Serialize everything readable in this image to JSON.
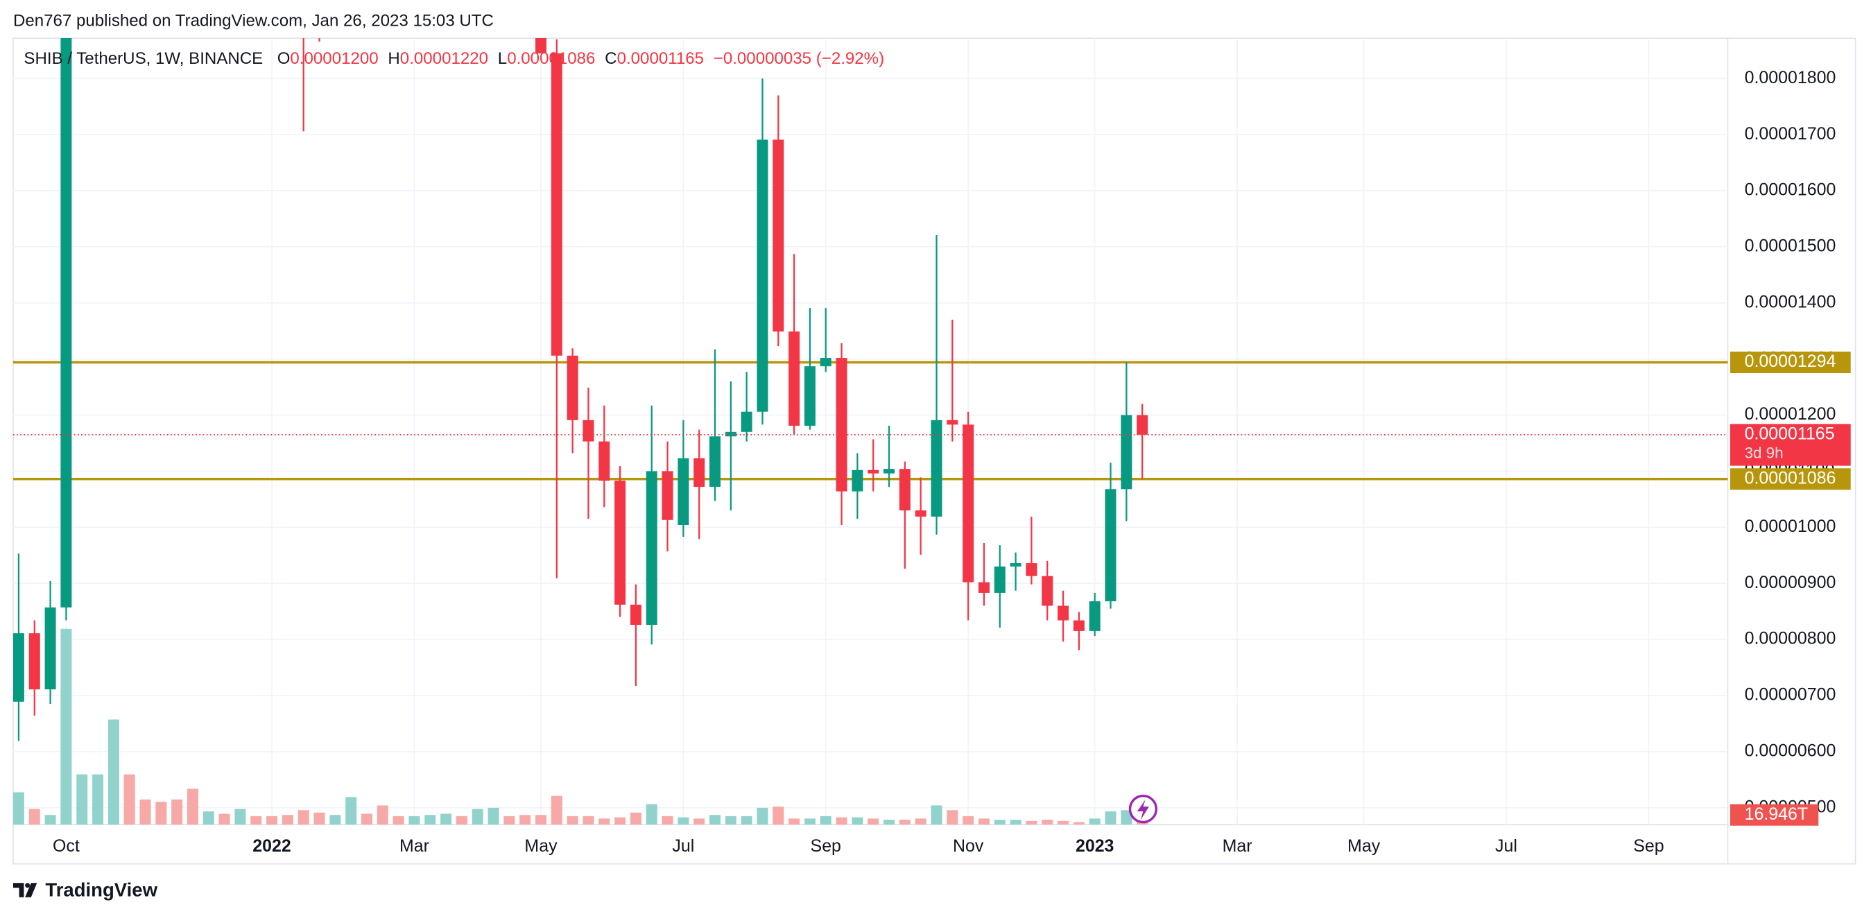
{
  "header": {
    "publisher": "Den767 published on TradingView.com, Jan 26, 2023 15:03 UTC",
    "footer": "TradingView"
  },
  "chart_data": {
    "type": "candlestick",
    "title": "SHIB / TetherUS, 1W, BINANCE",
    "legend_keys": [
      "O",
      "H",
      "L",
      "C"
    ],
    "legend_values": [
      "0.00001200",
      "0.00001220",
      "0.00001086",
      "0.00001165"
    ],
    "change": "−0.00000035 (−2.92%)",
    "up_color": "#089981",
    "down_color": "#f23645",
    "volume_up_color": "#92d2cc",
    "volume_down_color": "#f7a9a7",
    "open": [
      6.89e-06,
      8.11e-06,
      7.11e-06,
      8.57e-06,
      null,
      null,
      null,
      null,
      null,
      null,
      null,
      null,
      null,
      null,
      null,
      null,
      null,
      null,
      null,
      null,
      null,
      null,
      null,
      null,
      null,
      null,
      null,
      null,
      null,
      null,
      null,
      null,
      null,
      null,
      1.845e-05,
      1.306e-05,
      1.191e-05,
      1.153e-05,
      1.083e-05,
      8.62e-06,
      8.26e-06,
      1.1e-05,
      1.004e-05,
      1.123e-05,
      1.072e-05,
      1.162e-05,
      1.17e-05,
      1.206e-05,
      1.691e-05,
      1.349e-05,
      1.181e-05,
      1.287e-05,
      1.302e-05,
      1.064e-05,
      1.102e-05,
      1.096e-05,
      1.104e-05,
      1.03e-05,
      1.019e-05,
      1.191e-05,
      1.183e-05,
      9.02e-06,
      8.83e-06,
      9.3e-06,
      9.36e-06,
      9.13e-06,
      8.6e-06,
      8.34e-06,
      8.15e-06,
      8.68e-06,
      1.068e-05,
      1.2e-05
    ],
    "high": [
      9.53e-06,
      8.34e-06,
      9.04e-06,
      null,
      null,
      null,
      null,
      null,
      null,
      null,
      null,
      null,
      null,
      null,
      null,
      null,
      null,
      null,
      null,
      null,
      null,
      null,
      null,
      null,
      null,
      null,
      null,
      null,
      null,
      null,
      null,
      null,
      null,
      null,
      1.87e-05,
      1.319e-05,
      1.249e-05,
      1.217e-05,
      1.109e-05,
      8.98e-06,
      1.217e-05,
      1.153e-05,
      1.191e-05,
      1.174e-05,
      1.317e-05,
      1.26e-05,
      1.277e-05,
      1.8e-05,
      1.77e-05,
      1.487e-05,
      1.391e-05,
      1.391e-05,
      1.328e-05,
      1.132e-05,
      1.157e-05,
      1.181e-05,
      1.117e-05,
      1.089e-05,
      1.521e-05,
      1.37e-05,
      1.206e-05,
      9.72e-06,
      9.68e-06,
      9.55e-06,
      1.019e-05,
      9.4e-06,
      8.87e-06,
      8.49e-06,
      8.83e-06,
      1.115e-05,
      1.294e-05,
      1.22e-05
    ],
    "low": [
      6.19e-06,
      6.64e-06,
      6.85e-06,
      8.34e-06,
      null,
      null,
      null,
      null,
      null,
      null,
      null,
      null,
      null,
      null,
      null,
      null,
      null,
      null,
      1.706e-05,
      1.866e-05,
      null,
      null,
      null,
      null,
      null,
      null,
      null,
      null,
      null,
      null,
      null,
      null,
      null,
      null,
      9.09e-06,
      1.132e-05,
      1.015e-05,
      1.036e-05,
      8.4e-06,
      7.17e-06,
      7.91e-06,
      9.57e-06,
      9.83e-06,
      9.79e-06,
      1.047e-05,
      1.03e-05,
      1.153e-05,
      1.183e-05,
      1.323e-05,
      1.166e-05,
      1.174e-05,
      1.277e-05,
      1.004e-05,
      1.015e-05,
      1.064e-05,
      1.072e-05,
      9.26e-06,
      9.51e-06,
      9.87e-06,
      1.153e-05,
      8.34e-06,
      8.6e-06,
      8.21e-06,
      8.87e-06,
      8.98e-06,
      8.34e-06,
      7.96e-06,
      7.81e-06,
      8.06e-06,
      8.55e-06,
      1.011e-05,
      1.086e-05
    ],
    "close": [
      8.11e-06,
      7.11e-06,
      8.57e-06,
      null,
      null,
      null,
      null,
      null,
      null,
      null,
      null,
      null,
      null,
      null,
      null,
      null,
      null,
      null,
      null,
      null,
      null,
      null,
      null,
      null,
      null,
      null,
      null,
      null,
      null,
      null,
      null,
      null,
      null,
      1.845e-05,
      1.306e-05,
      1.191e-05,
      1.153e-05,
      1.083e-05,
      8.62e-06,
      8.26e-06,
      1.1e-05,
      1.013e-05,
      1.123e-05,
      1.072e-05,
      1.162e-05,
      1.17e-05,
      1.206e-05,
      1.691e-05,
      1.349e-05,
      1.181e-05,
      1.287e-05,
      1.302e-05,
      1.064e-05,
      1.102e-05,
      1.096e-05,
      1.104e-05,
      1.03e-05,
      1.019e-05,
      1.191e-05,
      1.183e-05,
      9.02e-06,
      8.83e-06,
      9.3e-06,
      9.36e-06,
      9.13e-06,
      8.6e-06,
      8.34e-06,
      8.15e-06,
      8.68e-06,
      1.068e-05,
      1.2e-05,
      1.165e-05
    ],
    "volume": [
      40.5,
      19.5,
      12,
      246,
      63,
      63,
      132,
      63,
      31.5,
      28.5,
      31.5,
      45,
      16.5,
      13.5,
      19.5,
      10.5,
      10.5,
      12,
      18,
      15,
      12,
      34.5,
      13.5,
      24,
      10.5,
      10.5,
      12,
      13.5,
      10.5,
      19.5,
      21,
      10.5,
      12,
      12,
      36,
      10.5,
      10.5,
      7.5,
      9,
      15,
      25.5,
      10.5,
      9,
      7.5,
      12,
      10.5,
      10.5,
      21,
      22.5,
      7.5,
      7.5,
      10.5,
      9,
      9,
      7.5,
      6,
      6,
      7.5,
      24,
      18,
      10.5,
      7.5,
      6,
      6,
      4.5,
      6,
      4.5,
      3,
      7.5,
      16.5,
      18,
      16.946
    ],
    "volume_colors": [
      "#92d2cc",
      "#f7a9a7",
      "#92d2cc",
      "#92d2cc",
      "#92d2cc",
      "#92d2cc",
      "#92d2cc",
      "#f7a9a7",
      "#f7a9a7",
      "#f7a9a7",
      "#f7a9a7",
      "#f7a9a7",
      "#92d2cc",
      "#f7a9a7",
      "#92d2cc",
      "#f7a9a7",
      "#f7a9a7",
      "#f7a9a7",
      "#f7a9a7",
      "#f7a9a7",
      "#92d2cc",
      "#92d2cc",
      "#f7a9a7",
      "#f7a9a7",
      "#f7a9a7",
      "#92d2cc",
      "#92d2cc",
      "#92d2cc",
      "#f7a9a7",
      "#92d2cc",
      "#92d2cc",
      "#f7a9a7",
      "#f7a9a7",
      "#f7a9a7",
      "#f7a9a7",
      "#f7a9a7",
      "#f7a9a7",
      "#f7a9a7",
      "#f7a9a7",
      "#f7a9a7",
      "#92d2cc",
      "#f7a9a7",
      "#92d2cc",
      "#f7a9a7",
      "#92d2cc",
      "#92d2cc",
      "#92d2cc",
      "#92d2cc",
      "#f7a9a7",
      "#f7a9a7",
      "#92d2cc",
      "#92d2cc",
      "#f7a9a7",
      "#92d2cc",
      "#f7a9a7",
      "#92d2cc",
      "#f7a9a7",
      "#f7a9a7",
      "#92d2cc",
      "#f7a9a7",
      "#f7a9a7",
      "#f7a9a7",
      "#92d2cc",
      "#92d2cc",
      "#f7a9a7",
      "#f7a9a7",
      "#f7a9a7",
      "#f7a9a7",
      "#92d2cc",
      "#92d2cc",
      "#92d2cc",
      "#f7a9a7"
    ],
    "volume_last_label": "16.946T",
    "volume_ylim": [
      0,
      300
    ],
    "xlim": [
      -0.35,
      108
    ],
    "xticks": [
      {
        "value": 3,
        "label": "Oct"
      },
      {
        "value": 16,
        "label": "2022"
      },
      {
        "value": 25,
        "label": "Mar"
      },
      {
        "value": 33,
        "label": "May"
      },
      {
        "value": 42,
        "label": "Jul"
      },
      {
        "value": 51,
        "label": "Sep"
      },
      {
        "value": 60,
        "label": "Nov"
      },
      {
        "value": 68,
        "label": "2023"
      },
      {
        "value": 77,
        "label": "Mar"
      },
      {
        "value": 85,
        "label": "May"
      },
      {
        "value": 94,
        "label": "Jul"
      },
      {
        "value": 103,
        "label": "Sep"
      }
    ],
    "ylim": [
      4.7e-06,
      1.872e-05
    ],
    "yticks": [
      {
        "value": 5e-06,
        "label": "0.00000500"
      },
      {
        "value": 6e-06,
        "label": "0.00000600"
      },
      {
        "value": 7e-06,
        "label": "0.00000700"
      },
      {
        "value": 8e-06,
        "label": "0.00000800"
      },
      {
        "value": 9e-06,
        "label": "0.00000900"
      },
      {
        "value": 1e-05,
        "label": "0.00001000"
      },
      {
        "value": 1.1e-05,
        "label": "0.00001100"
      },
      {
        "value": 1.2e-05,
        "label": "0.00001200"
      },
      {
        "value": 1.3e-05,
        "label": "0.00001300"
      },
      {
        "value": 1.4e-05,
        "label": "0.00001400"
      },
      {
        "value": 1.5e-05,
        "label": "0.00001500"
      },
      {
        "value": 1.6e-05,
        "label": "0.00001600"
      },
      {
        "value": 1.7e-05,
        "label": "0.00001700"
      },
      {
        "value": 1.8e-05,
        "label": "0.00001800"
      }
    ],
    "grid": true,
    "levels": [
      {
        "value": 1.294e-05,
        "label": "0.00001294",
        "color": "#b8960b"
      },
      {
        "value": 1.086e-05,
        "label": "0.00001086",
        "color": "#b8960b"
      }
    ],
    "price_line": {
      "value": 1.165e-05,
      "label": "0.00001165",
      "countdown": "3d 9h",
      "color": "#f23645"
    }
  }
}
